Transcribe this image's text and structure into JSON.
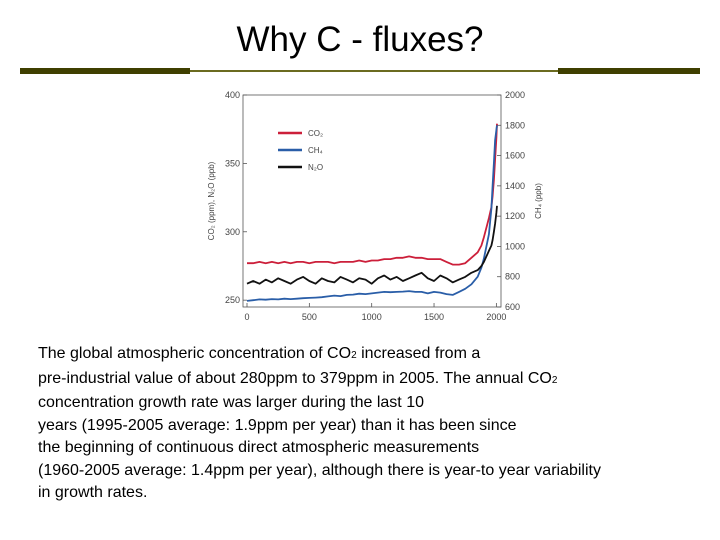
{
  "slide": {
    "title": "Why C -  fluxes?"
  },
  "body": {
    "lines": [
      [
        "The global atmospheric concentration of CO",
        "2",
        "  increased from a"
      ],
      [
        "pre-industrial value of about 280ppm to 379ppm in 2005. The annual CO",
        "2",
        ""
      ],
      [
        " concentration growth rate was larger during the last 10",
        "",
        ""
      ],
      [
        "years (1995-2005 average: 1.9ppm per year) than it has been since",
        "",
        ""
      ],
      [
        "the beginning of continuous direct atmospheric measurements",
        "",
        ""
      ],
      [
        "(1960-2005 average: 1.4ppm per year), although there is year-to year variability",
        "",
        ""
      ],
      [
        "in growth rates.",
        "",
        ""
      ]
    ]
  },
  "colors": {
    "co2": "#cc1f3a",
    "ch4": "#2a5ea8",
    "n2o": "#111111",
    "rule": "#3f3f00"
  },
  "chart_data": {
    "type": "line",
    "x_ticks": [
      "0",
      "500",
      "1000",
      "1500",
      "2000"
    ],
    "y_left_ticks": [
      "250",
      "300",
      "350",
      "400"
    ],
    "y_right_ticks": [
      "600",
      "800",
      "1000",
      "1200",
      "1400",
      "1600",
      "1800",
      "2000"
    ],
    "ylabel_left": "CO₂ (ppm), N₂O (ppb)",
    "ylabel_right": "CH₄ (ppb)",
    "xlim": [
      0,
      2005
    ],
    "ylim_left": [
      245,
      400
    ],
    "ylim_right": [
      600,
      2000
    ],
    "legend_position": "top-left",
    "series": [
      {
        "name": "CO₂",
        "axis": "left",
        "x": [
          0,
          50,
          100,
          150,
          200,
          250,
          300,
          350,
          400,
          450,
          500,
          550,
          600,
          650,
          700,
          750,
          800,
          850,
          900,
          950,
          1000,
          1050,
          1100,
          1150,
          1200,
          1250,
          1300,
          1350,
          1400,
          1450,
          1500,
          1550,
          1600,
          1650,
          1700,
          1750,
          1800,
          1850,
          1880,
          1900,
          1920,
          1940,
          1960,
          1970,
          1980,
          1990,
          2000,
          2005
        ],
        "values": [
          277,
          277,
          278,
          277,
          278,
          277,
          278,
          277,
          278,
          278,
          277,
          278,
          278,
          278,
          277,
          278,
          278,
          278,
          279,
          278,
          279,
          279,
          280,
          280,
          281,
          281,
          282,
          281,
          281,
          280,
          280,
          280,
          278,
          276,
          276,
          277,
          281,
          285,
          290,
          296,
          303,
          310,
          318,
          326,
          338,
          353,
          369,
          379
        ]
      },
      {
        "name": "CH₄",
        "axis": "right",
        "x": [
          0,
          50,
          100,
          150,
          200,
          250,
          300,
          350,
          400,
          450,
          500,
          550,
          600,
          650,
          700,
          750,
          800,
          850,
          900,
          950,
          1000,
          1050,
          1100,
          1150,
          1200,
          1250,
          1300,
          1350,
          1400,
          1450,
          1500,
          1550,
          1600,
          1650,
          1700,
          1750,
          1800,
          1850,
          1880,
          1900,
          1920,
          1940,
          1960,
          1970,
          1980,
          1990,
          2000,
          2005
        ],
        "values": [
          640,
          645,
          650,
          648,
          652,
          650,
          655,
          652,
          655,
          658,
          660,
          662,
          665,
          670,
          675,
          672,
          680,
          682,
          688,
          685,
          690,
          695,
          700,
          698,
          700,
          702,
          705,
          700,
          700,
          690,
          700,
          695,
          685,
          680,
          700,
          720,
          750,
          800,
          860,
          920,
          1000,
          1080,
          1250,
          1400,
          1550,
          1700,
          1770,
          1800
        ]
      },
      {
        "name": "N₂O",
        "axis": "left",
        "x": [
          0,
          50,
          100,
          150,
          200,
          250,
          300,
          350,
          400,
          450,
          500,
          550,
          600,
          650,
          700,
          750,
          800,
          850,
          900,
          950,
          1000,
          1050,
          1100,
          1150,
          1200,
          1250,
          1300,
          1350,
          1400,
          1450,
          1500,
          1550,
          1600,
          1650,
          1700,
          1750,
          1800,
          1850,
          1880,
          1900,
          1920,
          1940,
          1960,
          1970,
          1980,
          1990,
          2000,
          2005
        ],
        "values": [
          262,
          264,
          262,
          265,
          263,
          266,
          264,
          262,
          265,
          267,
          264,
          262,
          266,
          264,
          263,
          267,
          265,
          263,
          266,
          265,
          262,
          266,
          268,
          265,
          267,
          264,
          266,
          268,
          270,
          266,
          264,
          268,
          266,
          263,
          265,
          267,
          270,
          272,
          275,
          278,
          282,
          286,
          290,
          294,
          300,
          306,
          314,
          319
        ]
      }
    ]
  }
}
